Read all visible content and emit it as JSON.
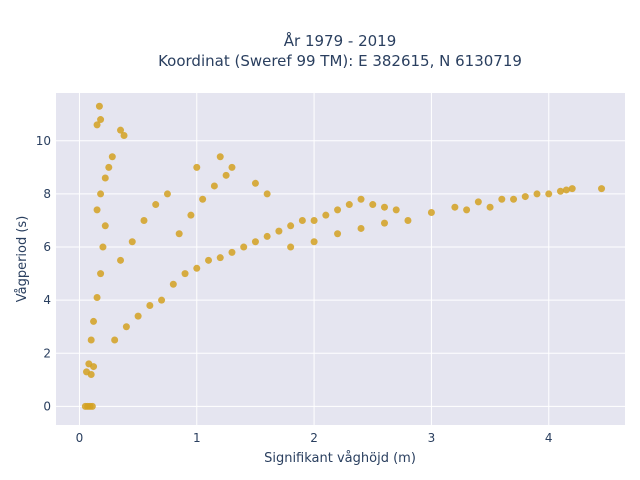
{
  "chart_data": {
    "type": "scatter",
    "title": "År 1979 - 2019",
    "subtitle": "Koordinat (Sweref 99 TM): E 382615, N 6130719",
    "xlabel": "Signifikant våghöjd (m)",
    "ylabel": "Vågperiod (s)",
    "xlim": [
      -0.2,
      4.65
    ],
    "ylim": [
      -0.7,
      11.8
    ],
    "x_ticks": [
      0,
      1,
      2,
      3,
      4
    ],
    "y_ticks": [
      0,
      2,
      4,
      6,
      8,
      10
    ],
    "grid": true,
    "legend": "none",
    "colors": {
      "marker": "#d4a121",
      "plot_bg": "#e5e5f0",
      "grid": "#ffffff"
    },
    "series": [
      {
        "points": [
          [
            0.05,
            0.0
          ],
          [
            0.07,
            0.0
          ],
          [
            0.09,
            0.0
          ],
          [
            0.11,
            0.0
          ],
          [
            0.06,
            1.3
          ],
          [
            0.08,
            1.6
          ],
          [
            0.1,
            1.2
          ],
          [
            0.12,
            1.5
          ],
          [
            0.1,
            2.5
          ],
          [
            0.12,
            3.2
          ],
          [
            0.15,
            4.1
          ],
          [
            0.18,
            5.0
          ],
          [
            0.2,
            6.0
          ],
          [
            0.22,
            6.8
          ],
          [
            0.15,
            7.4
          ],
          [
            0.18,
            8.0
          ],
          [
            0.22,
            8.6
          ],
          [
            0.25,
            9.0
          ],
          [
            0.28,
            9.4
          ],
          [
            0.15,
            10.6
          ],
          [
            0.18,
            10.8
          ],
          [
            0.17,
            11.3
          ],
          [
            0.35,
            10.4
          ],
          [
            0.38,
            10.2
          ],
          [
            0.3,
            2.5
          ],
          [
            0.4,
            3.0
          ],
          [
            0.5,
            3.4
          ],
          [
            0.6,
            3.8
          ],
          [
            0.7,
            4.0
          ],
          [
            0.35,
            5.5
          ],
          [
            0.45,
            6.2
          ],
          [
            0.55,
            7.0
          ],
          [
            0.65,
            7.6
          ],
          [
            0.75,
            8.0
          ],
          [
            0.8,
            4.6
          ],
          [
            0.9,
            5.0
          ],
          [
            1.0,
            5.2
          ],
          [
            1.1,
            5.5
          ],
          [
            1.2,
            5.6
          ],
          [
            0.85,
            6.5
          ],
          [
            0.95,
            7.2
          ],
          [
            1.05,
            7.8
          ],
          [
            1.15,
            8.3
          ],
          [
            1.25,
            8.7
          ],
          [
            1.0,
            9.0
          ],
          [
            1.2,
            9.4
          ],
          [
            1.3,
            9.0
          ],
          [
            1.5,
            8.4
          ],
          [
            1.6,
            8.0
          ],
          [
            1.3,
            5.8
          ],
          [
            1.4,
            6.0
          ],
          [
            1.5,
            6.2
          ],
          [
            1.6,
            6.4
          ],
          [
            1.7,
            6.6
          ],
          [
            1.8,
            6.8
          ],
          [
            1.9,
            7.0
          ],
          [
            2.0,
            7.0
          ],
          [
            2.1,
            7.2
          ],
          [
            2.2,
            7.4
          ],
          [
            1.8,
            6.0
          ],
          [
            2.0,
            6.2
          ],
          [
            2.2,
            6.5
          ],
          [
            2.4,
            6.7
          ],
          [
            2.6,
            6.9
          ],
          [
            2.3,
            7.6
          ],
          [
            2.4,
            7.8
          ],
          [
            2.5,
            7.6
          ],
          [
            2.6,
            7.5
          ],
          [
            2.7,
            7.4
          ],
          [
            2.8,
            7.0
          ],
          [
            3.0,
            7.3
          ],
          [
            3.2,
            7.5
          ],
          [
            3.4,
            7.7
          ],
          [
            3.6,
            7.8
          ],
          [
            3.7,
            7.8
          ],
          [
            3.8,
            7.9
          ],
          [
            3.9,
            8.0
          ],
          [
            4.0,
            8.0
          ],
          [
            4.1,
            8.1
          ],
          [
            4.2,
            8.2
          ],
          [
            4.15,
            8.15
          ],
          [
            4.45,
            8.2
          ],
          [
            3.3,
            7.4
          ],
          [
            3.5,
            7.5
          ]
        ]
      }
    ]
  }
}
